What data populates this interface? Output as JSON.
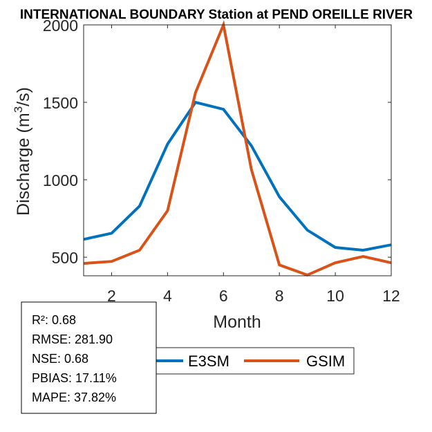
{
  "chart_data": {
    "type": "line",
    "title": "INTERNATIONAL BOUNDARY  Station at  PEND OREILLE RIVER",
    "xlabel": "Month",
    "ylabel": "Discharge (m³/s)",
    "ylabel_parts": {
      "prefix": "Discharge (m",
      "sup": "3",
      "suffix": "/s)"
    },
    "xlim": [
      1,
      12
    ],
    "ylim": [
      380,
      2000
    ],
    "xticks": [
      2,
      4,
      6,
      8,
      10,
      12
    ],
    "yticks": [
      500,
      1000,
      1500,
      2000
    ],
    "grid": false,
    "x": [
      1,
      2,
      3,
      4,
      5,
      6,
      7,
      8,
      9,
      10,
      11,
      12
    ],
    "series": [
      {
        "name": "E3SM",
        "color": "#0072BD",
        "values": [
          615,
          655,
          830,
          1230,
          1500,
          1455,
          1220,
          890,
          675,
          563,
          545,
          580
        ]
      },
      {
        "name": "GSIM",
        "color": "#D95319",
        "values": [
          460,
          473,
          545,
          800,
          1562,
          2000,
          1067,
          450,
          385,
          464,
          505,
          464
        ]
      }
    ],
    "legend": {
      "placement": "bottom-center",
      "orientation": "horizontal",
      "entries": [
        "E3SM",
        "GSIM"
      ]
    },
    "annotations": {
      "stats_box": [
        "R²: 0.68",
        "RMSE: 281.90",
        "NSE: 0.68",
        "PBIAS: 17.11%",
        "MAPE: 37.82%"
      ]
    }
  }
}
